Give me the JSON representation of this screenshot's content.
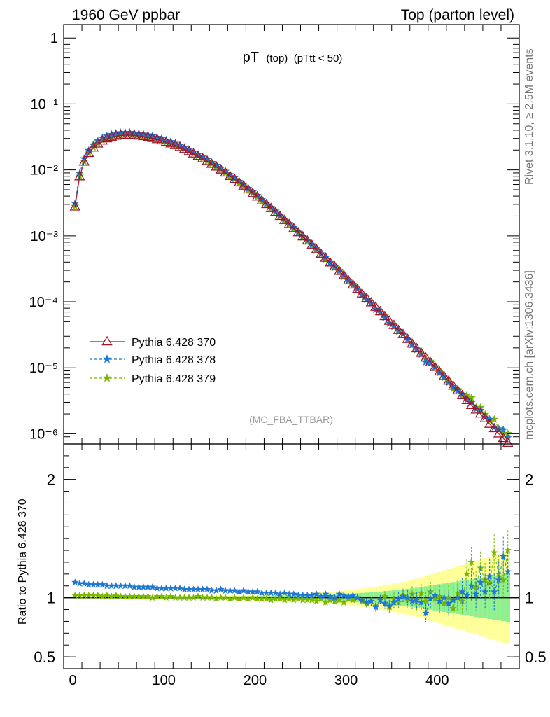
{
  "header": {
    "left": "1960 GeV ppbar",
    "right": "Top (parton level)"
  },
  "side": {
    "rivet": "Rivet 3.1.10, ≥ 2.5M events",
    "mcplots": "mcplots.cern.ch [arXiv:1306.3436]"
  },
  "plot_title": {
    "main": "pT",
    "sub1": "(top)",
    "sub2": "(pTtt < 50)"
  },
  "watermark": "(MC_FBA_TTBAR)",
  "ratio_ylabel": "Ratio to Pythia 6.428 370",
  "colors": {
    "ref": "#a0162b",
    "s378": "#1f77d4",
    "s379": "#7ab800",
    "band_inner": "#8ef08e",
    "band_outer": "#ffff99"
  },
  "chart_data": [
    {
      "type": "scatter",
      "log_y": true,
      "xlim": [
        -10,
        490
      ],
      "ylim": [
        7e-07,
        1.6
      ],
      "y_tick_labels": [
        "1",
        "10⁻¹",
        "10⁻²",
        "10⁻³",
        "10⁻⁴",
        "10⁻⁵",
        "10⁻⁶"
      ],
      "x_ticks": [
        0,
        100,
        200,
        300,
        400
      ],
      "legend": "left",
      "series": [
        {
          "name": "Pythia 6.428 370",
          "marker": "open-triangle",
          "line": "solid",
          "x": [
            2.5,
            7.5,
            12.5,
            17.5,
            22.5,
            27.5,
            32.5,
            37.5,
            42.5,
            47.5,
            52.5,
            57.5,
            62.5,
            67.5,
            72.5,
            77.5,
            82.5,
            87.5,
            92.5,
            97.5,
            102.5,
            107.5,
            112.5,
            117.5,
            122.5,
            127.5,
            132.5,
            137.5,
            142.5,
            147.5,
            152.5,
            157.5,
            162.5,
            167.5,
            172.5,
            177.5,
            182.5,
            187.5,
            192.5,
            197.5,
            202.5,
            207.5,
            212.5,
            217.5,
            222.5,
            227.5,
            232.5,
            237.5,
            242.5,
            247.5,
            252.5,
            257.5,
            262.5,
            267.5,
            272.5,
            277.5,
            282.5,
            287.5,
            292.5,
            297.5,
            302.5,
            307.5,
            312.5,
            317.5,
            322.5,
            327.5,
            332.5,
            337.5,
            342.5,
            347.5,
            352.5,
            357.5,
            362.5,
            367.5,
            372.5,
            377.5,
            382.5,
            387.5,
            392.5,
            397.5,
            402.5,
            407.5,
            412.5,
            417.5,
            422.5,
            427.5,
            432.5,
            437.5,
            442.5,
            447.5,
            452.5,
            457.5,
            462.5,
            467.5,
            472.5,
            477.5
          ],
          "y": [
            0.00275,
            0.0079,
            0.0132,
            0.0178,
            0.0216,
            0.0248,
            0.0275,
            0.0297,
            0.0314,
            0.0326,
            0.0333,
            0.0336,
            0.0336,
            0.0333,
            0.0328,
            0.0321,
            0.0312,
            0.0301,
            0.0289,
            0.0277,
            0.0263,
            0.0249,
            0.0235,
            0.022,
            0.0205,
            0.019,
            0.0175,
            0.0161,
            0.0148,
            0.0135,
            0.0122,
            0.0111,
            0.01,
            0.009,
            0.008,
            0.0072,
            0.0064,
            0.0057,
            0.005,
            0.0044,
            0.0039,
            0.0034,
            0.003,
            0.0026,
            0.00228,
            0.00198,
            0.00172,
            0.00149,
            0.00129,
            0.00112,
            0.00097,
            0.00084,
            0.00072,
            0.00062,
            0.00053,
            0.00046,
            0.00039,
            0.00034,
            0.00029,
            0.00025,
            0.00021,
            0.00018,
            0.000155,
            0.000132,
            0.000113,
            9.7e-05,
            8.3e-05,
            7.1e-05,
            6e-05,
            5.1e-05,
            4.4e-05,
            3.7e-05,
            3.2e-05,
            2.7e-05,
            2.3e-05,
            1.95e-05,
            1.66e-05,
            1.41e-05,
            1.2e-05,
            1.02e-05,
            8.7e-06,
            7.4e-06,
            6.3e-06,
            5.3e-06,
            4.5e-06,
            3.8e-06,
            3.2e-06,
            2.7e-06,
            2.3e-06,
            2e-06,
            1.7e-06,
            1.4e-06,
            1.2e-06,
            1e-06,
            8.5e-07,
            7.2e-07
          ]
        },
        {
          "name": "Pythia 6.428 378",
          "marker": "star",
          "line": "dashed",
          "ratio": [
            1.13,
            1.12,
            1.12,
            1.11,
            1.11,
            1.11,
            1.11,
            1.1,
            1.1,
            1.1,
            1.1,
            1.1,
            1.1,
            1.09,
            1.09,
            1.09,
            1.09,
            1.09,
            1.08,
            1.08,
            1.08,
            1.08,
            1.08,
            1.08,
            1.07,
            1.07,
            1.07,
            1.07,
            1.07,
            1.07,
            1.06,
            1.06,
            1.07,
            1.06,
            1.06,
            1.06,
            1.05,
            1.06,
            1.05,
            1.05,
            1.05,
            1.04,
            1.04,
            1.04,
            1.04,
            1.03,
            1.04,
            1.03,
            1.03,
            1.02,
            1.02,
            1.02,
            1.02,
            1.03,
            1.01,
            1.03,
            1.01,
            1.0,
            1.03,
            1.02,
            1.01,
            1.02,
            1.0,
            0.98,
            0.96,
            0.97,
            0.92,
            0.98,
            0.95,
            0.93,
            0.96,
            0.99,
            1.01,
            1.0,
            0.97,
            0.98,
            0.96,
            0.87,
            0.99,
            1.02,
            0.97,
            1.0,
            0.95,
            0.98,
            1.0,
            1.05,
            1.02,
            1.1,
            1.03,
            1.13,
            1.05,
            1.18,
            1.05,
            1.15,
            1.35,
            1.22
          ],
          "ratio_err": [
            0.005,
            0.005,
            0.005,
            0.005,
            0.005,
            0.005,
            0.005,
            0.005,
            0.005,
            0.005,
            0.005,
            0.005,
            0.005,
            0.005,
            0.005,
            0.005,
            0.005,
            0.005,
            0.005,
            0.005,
            0.006,
            0.006,
            0.006,
            0.006,
            0.006,
            0.006,
            0.006,
            0.006,
            0.007,
            0.007,
            0.007,
            0.007,
            0.008,
            0.008,
            0.008,
            0.009,
            0.009,
            0.009,
            0.01,
            0.01,
            0.01,
            0.011,
            0.011,
            0.012,
            0.012,
            0.013,
            0.013,
            0.014,
            0.014,
            0.015,
            0.016,
            0.017,
            0.018,
            0.019,
            0.02,
            0.021,
            0.022,
            0.023,
            0.025,
            0.026,
            0.028,
            0.03,
            0.032,
            0.034,
            0.036,
            0.038,
            0.04,
            0.043,
            0.046,
            0.049,
            0.052,
            0.055,
            0.058,
            0.062,
            0.066,
            0.07,
            0.075,
            0.08,
            0.085,
            0.09,
            0.095,
            0.1,
            0.105,
            0.11,
            0.115,
            0.12,
            0.125,
            0.13,
            0.135,
            0.14,
            0.145,
            0.15,
            0.155,
            0.16,
            0.165,
            0.17
          ]
        },
        {
          "name": "Pythia 6.428 379",
          "marker": "star",
          "line": "dashed",
          "ratio": [
            1.02,
            1.02,
            1.02,
            1.02,
            1.02,
            1.02,
            1.01,
            1.02,
            1.01,
            1.02,
            1.01,
            1.01,
            1.01,
            1.01,
            1.01,
            1.01,
            1.01,
            1.0,
            1.01,
            1.01,
            1.0,
            1.01,
            1.0,
            1.0,
            1.0,
            1.0,
            1.0,
            1.01,
            1.0,
            1.0,
            1.0,
            0.99,
            1.0,
            1.0,
            0.99,
            1.0,
            0.99,
            1.0,
            0.99,
            1.0,
            0.99,
            0.99,
            0.99,
            0.98,
            0.99,
            0.99,
            0.98,
            0.99,
            0.98,
            0.99,
            0.98,
            0.98,
            0.98,
            0.97,
            0.99,
            0.96,
            0.98,
            0.97,
            0.98,
            0.96,
            0.99,
            0.98,
            1.0,
            0.97,
            0.95,
            0.97,
            0.93,
            0.98,
            1.01,
            0.92,
            0.99,
            0.96,
            1.02,
            0.98,
            1.03,
            0.96,
            1.04,
            0.97,
            1.05,
            0.99,
            1.01,
            0.95,
            1.0,
            0.91,
            1.04,
            0.97,
            1.2,
            1.3,
            1.09,
            1.25,
            1.15,
            1.12,
            1.38,
            1.2,
            1.15,
            1.4
          ],
          "ratio_err": [
            0.005,
            0.005,
            0.005,
            0.005,
            0.005,
            0.005,
            0.005,
            0.005,
            0.005,
            0.005,
            0.005,
            0.005,
            0.005,
            0.005,
            0.005,
            0.005,
            0.005,
            0.005,
            0.005,
            0.005,
            0.006,
            0.006,
            0.006,
            0.006,
            0.006,
            0.006,
            0.006,
            0.006,
            0.007,
            0.007,
            0.007,
            0.007,
            0.008,
            0.008,
            0.008,
            0.009,
            0.009,
            0.009,
            0.01,
            0.01,
            0.01,
            0.011,
            0.011,
            0.012,
            0.012,
            0.013,
            0.013,
            0.014,
            0.014,
            0.015,
            0.016,
            0.017,
            0.018,
            0.019,
            0.02,
            0.021,
            0.022,
            0.023,
            0.025,
            0.026,
            0.028,
            0.03,
            0.032,
            0.034,
            0.036,
            0.038,
            0.04,
            0.043,
            0.046,
            0.049,
            0.052,
            0.055,
            0.058,
            0.062,
            0.066,
            0.07,
            0.075,
            0.08,
            0.085,
            0.09,
            0.095,
            0.1,
            0.105,
            0.11,
            0.115,
            0.12,
            0.125,
            0.13,
            0.135,
            0.14,
            0.145,
            0.15,
            0.155,
            0.16,
            0.165,
            0.17
          ]
        }
      ]
    },
    {
      "type": "scatter",
      "ylim": [
        0.4,
        2.3
      ],
      "ytick_labels": [
        "2",
        "1",
        "0.5"
      ],
      "x_tick_labels": [
        "0",
        "100",
        "200",
        "300",
        "400"
      ],
      "reference_line": 1,
      "bands": "ratio uncertainty of Pythia 6.428 370"
    }
  ]
}
